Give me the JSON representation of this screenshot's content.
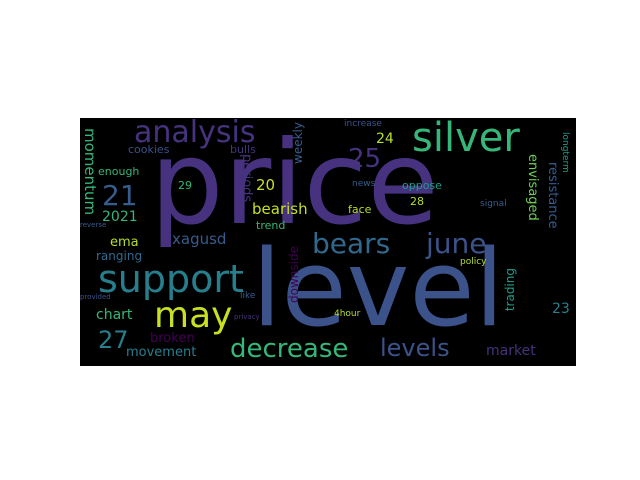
{
  "words": {
    "price": "price",
    "level": "level",
    "support": "support",
    "silver": "silver",
    "bears": "bears",
    "june": "june",
    "may": "may",
    "analysis": "analysis",
    "decrease": "decrease",
    "levels": "levels",
    "n25": "25",
    "n21": "21",
    "n27": "27",
    "n20": "20",
    "bearish": "bearish",
    "xagusd": "xagusd",
    "momentum": "momentum",
    "n2021": "2021",
    "ema": "ema",
    "ranging": "ranging",
    "chart": "chart",
    "broken": "broken",
    "movement": "movement",
    "market": "market",
    "resistance": "resistance",
    "envisaged": "envisaged",
    "trading": "trading",
    "n23": "23",
    "n24": "24",
    "periods": "periods",
    "downside": "downside",
    "weekly": "weekly",
    "cookies": "cookies",
    "enough": "enough",
    "bulls": "bulls",
    "n29": "29",
    "trend": "trend",
    "face": "face",
    "oppose": "oppose",
    "n28": "28",
    "news": "news",
    "increase": "increase",
    "longterm": "longterm",
    "signal": "signal",
    "policy": "policy",
    "like": "like",
    "n4hour": "4hour",
    "privacy": "privacy",
    "provided": "provided",
    "reverse": "reverse"
  },
  "colors": {
    "background": "#000000",
    "page": "#ffffff",
    "palette": [
      "#46327e",
      "#3b528b",
      "#365c8d",
      "#277f8e",
      "#1f9e89",
      "#35b779",
      "#6ece58",
      "#b5de2b",
      "#c8e020",
      "#440154"
    ]
  }
}
